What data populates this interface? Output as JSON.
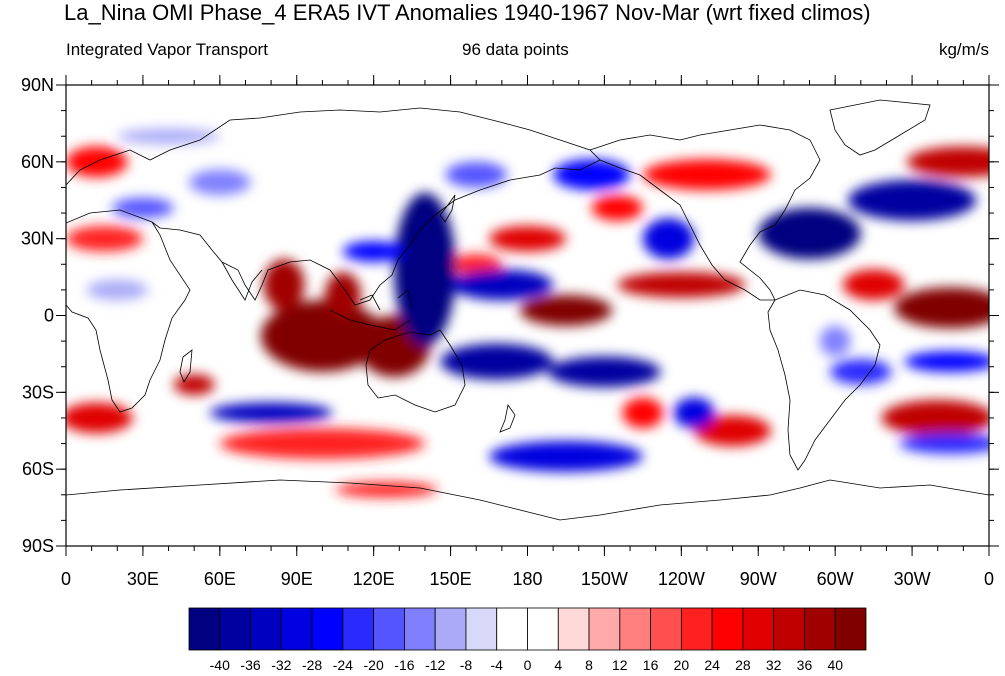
{
  "title": "La_Nina OMI Phase_4 ERA5 IVT Anomalies 1940-1967 Nov-Mar (wrt fixed climos)",
  "subtitle_left": "Integrated Vapor Transport",
  "subtitle_center": "96 data points",
  "subtitle_right": "kg/m/s",
  "map": {
    "projection": "cylindrical-equidistant",
    "lon_range": [
      0,
      360
    ],
    "lat_range": [
      -90,
      90
    ],
    "lat_ticks": [
      {
        "value": 90,
        "label": "90N"
      },
      {
        "value": 60,
        "label": "60N"
      },
      {
        "value": 30,
        "label": "30N"
      },
      {
        "value": 0,
        "label": "0"
      },
      {
        "value": -30,
        "label": "30S"
      },
      {
        "value": -60,
        "label": "60S"
      },
      {
        "value": -90,
        "label": "90S"
      }
    ],
    "lon_ticks": [
      {
        "value": 0,
        "label": "0"
      },
      {
        "value": 30,
        "label": "30E"
      },
      {
        "value": 60,
        "label": "60E"
      },
      {
        "value": 90,
        "label": "90E"
      },
      {
        "value": 120,
        "label": "120E"
      },
      {
        "value": 150,
        "label": "150E"
      },
      {
        "value": 180,
        "label": "180"
      },
      {
        "value": 210,
        "label": "150W"
      },
      {
        "value": 240,
        "label": "120W"
      },
      {
        "value": 270,
        "label": "90W"
      },
      {
        "value": 300,
        "label": "60W"
      },
      {
        "value": 330,
        "label": "30W"
      },
      {
        "value": 360,
        "label": "0"
      }
    ],
    "anomaly_blobs": [
      {
        "lon": 100,
        "lat": -8,
        "rx": 24,
        "ry": 14,
        "value": 44
      },
      {
        "lon": 128,
        "lat": -12,
        "rx": 14,
        "ry": 12,
        "value": 42
      },
      {
        "lon": 85,
        "lat": 12,
        "rx": 8,
        "ry": 10,
        "value": 38
      },
      {
        "lon": 108,
        "lat": 8,
        "rx": 7,
        "ry": 9,
        "value": 36
      },
      {
        "lon": 195,
        "lat": 2,
        "rx": 18,
        "ry": 6,
        "value": 40
      },
      {
        "lon": 240,
        "lat": 12,
        "rx": 25,
        "ry": 5,
        "value": 32
      },
      {
        "lon": 345,
        "lat": 3,
        "rx": 22,
        "ry": 8,
        "value": 40
      },
      {
        "lon": 315,
        "lat": 12,
        "rx": 12,
        "ry": 6,
        "value": 28
      },
      {
        "lon": 350,
        "lat": 60,
        "rx": 22,
        "ry": 6,
        "value": 32
      },
      {
        "lon": 250,
        "lat": 55,
        "rx": 25,
        "ry": 6,
        "value": 24
      },
      {
        "lon": 12,
        "lat": 60,
        "rx": 12,
        "ry": 6,
        "value": 24
      },
      {
        "lon": 15,
        "lat": 30,
        "rx": 15,
        "ry": 5,
        "value": 20
      },
      {
        "lon": 180,
        "lat": 30,
        "rx": 15,
        "ry": 5,
        "value": 28
      },
      {
        "lon": 215,
        "lat": 42,
        "rx": 10,
        "ry": 5,
        "value": 24
      },
      {
        "lon": 12,
        "lat": -40,
        "rx": 14,
        "ry": 6,
        "value": 28
      },
      {
        "lon": 50,
        "lat": -27,
        "rx": 8,
        "ry": 4,
        "value": 32
      },
      {
        "lon": 100,
        "lat": -50,
        "rx": 40,
        "ry": 6,
        "value": 20
      },
      {
        "lon": 260,
        "lat": -45,
        "rx": 15,
        "ry": 6,
        "value": 28
      },
      {
        "lon": 340,
        "lat": -40,
        "rx": 22,
        "ry": 7,
        "value": 34
      },
      {
        "lon": 125,
        "lat": -68,
        "rx": 20,
        "ry": 3,
        "value": 20
      },
      {
        "lon": 225,
        "lat": -38,
        "rx": 8,
        "ry": 6,
        "value": 24
      },
      {
        "lon": 160,
        "lat": 20,
        "rx": 10,
        "ry": 4,
        "value": 20
      },
      {
        "lon": 140,
        "lat": 18,
        "rx": 12,
        "ry": 30,
        "value": -44
      },
      {
        "lon": 170,
        "lat": 12,
        "rx": 20,
        "ry": 6,
        "value": -36
      },
      {
        "lon": 168,
        "lat": -18,
        "rx": 22,
        "ry": 7,
        "value": -38
      },
      {
        "lon": 210,
        "lat": -22,
        "rx": 22,
        "ry": 6,
        "value": -40
      },
      {
        "lon": 290,
        "lat": 32,
        "rx": 20,
        "ry": 10,
        "value": -42
      },
      {
        "lon": 330,
        "lat": 45,
        "rx": 25,
        "ry": 8,
        "value": -40
      },
      {
        "lon": 205,
        "lat": 55,
        "rx": 15,
        "ry": 6,
        "value": -28
      },
      {
        "lon": 235,
        "lat": 30,
        "rx": 10,
        "ry": 8,
        "value": -32
      },
      {
        "lon": 120,
        "lat": 25,
        "rx": 12,
        "ry": 4,
        "value": -28
      },
      {
        "lon": 80,
        "lat": -38,
        "rx": 24,
        "ry": 4,
        "value": -36
      },
      {
        "lon": 195,
        "lat": -55,
        "rx": 30,
        "ry": 6,
        "value": -32
      },
      {
        "lon": 245,
        "lat": -38,
        "rx": 8,
        "ry": 6,
        "value": -32
      },
      {
        "lon": 310,
        "lat": -22,
        "rx": 12,
        "ry": 5,
        "value": -24
      },
      {
        "lon": 345,
        "lat": -18,
        "rx": 18,
        "ry": 4,
        "value": -28
      },
      {
        "lon": 345,
        "lat": -50,
        "rx": 20,
        "ry": 4,
        "value": -24
      },
      {
        "lon": 30,
        "lat": 42,
        "rx": 12,
        "ry": 4,
        "value": -20
      },
      {
        "lon": 60,
        "lat": 52,
        "rx": 12,
        "ry": 5,
        "value": -16
      },
      {
        "lon": 40,
        "lat": 70,
        "rx": 20,
        "ry": 3,
        "value": -12
      },
      {
        "lon": 300,
        "lat": -10,
        "rx": 6,
        "ry": 6,
        "value": -16
      },
      {
        "lon": 20,
        "lat": 10,
        "rx": 12,
        "ry": 4,
        "value": -12
      },
      {
        "lon": 160,
        "lat": 55,
        "rx": 12,
        "ry": 5,
        "value": -20
      }
    ]
  },
  "colorbar": {
    "labels": [
      "-40",
      "-36",
      "-32",
      "-28",
      "-24",
      "-20",
      "-16",
      "-12",
      "-8",
      "-4",
      "0",
      "4",
      "8",
      "12",
      "16",
      "20",
      "24",
      "28",
      "32",
      "36",
      "40"
    ],
    "colors": [
      "#000080",
      "#0000a0",
      "#0000c0",
      "#0000e0",
      "#0000ff",
      "#2a2aff",
      "#5555ff",
      "#8080ff",
      "#aaaaf8",
      "#d8d8f8",
      "#ffffff",
      "#ffffff",
      "#ffd8d8",
      "#ffaaaa",
      "#ff7f7f",
      "#ff5050",
      "#ff2020",
      "#ff0000",
      "#e00000",
      "#c00000",
      "#a00000",
      "#800000"
    ]
  }
}
